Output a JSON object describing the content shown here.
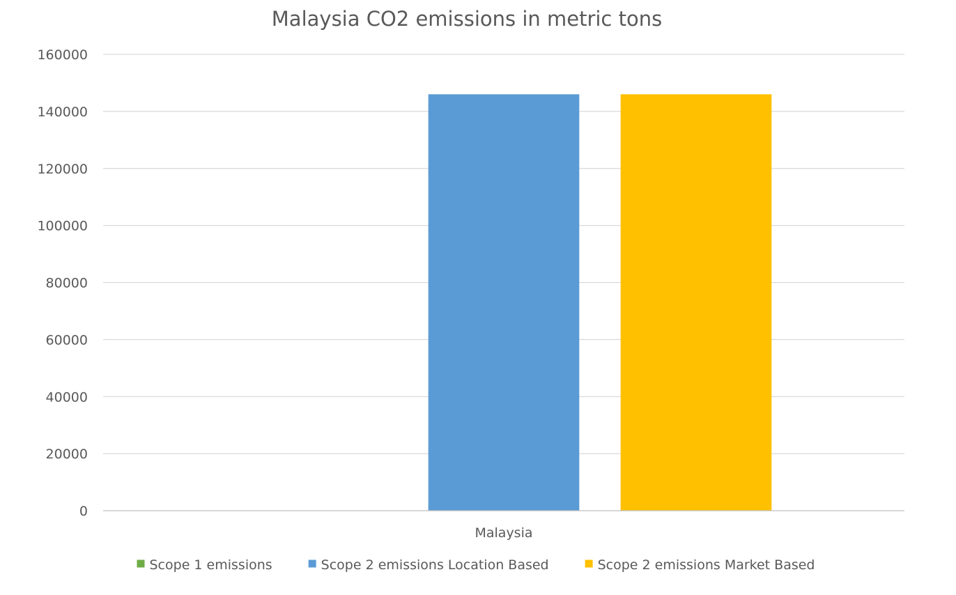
{
  "chart_data": {
    "type": "bar",
    "title": "Malaysia CO2 emissions in metric tons",
    "categories": [
      "Malaysia"
    ],
    "series": [
      {
        "name": "Scope 1 emissions",
        "color": "#70ad47",
        "values": [
          0
        ]
      },
      {
        "name": "Scope 2 emissions Location Based",
        "color": "#5b9bd5",
        "values": [
          146000
        ]
      },
      {
        "name": "Scope 2 emissions Market Based",
        "color": "#ffc000",
        "values": [
          146000
        ]
      }
    ],
    "ylim": [
      0,
      160000
    ],
    "yticks": [
      "0",
      "20000",
      "40000",
      "60000",
      "80000",
      "100000",
      "120000",
      "140000",
      "160000"
    ],
    "xlabel": "",
    "ylabel": "",
    "grid": true,
    "legend_position": "bottom"
  }
}
